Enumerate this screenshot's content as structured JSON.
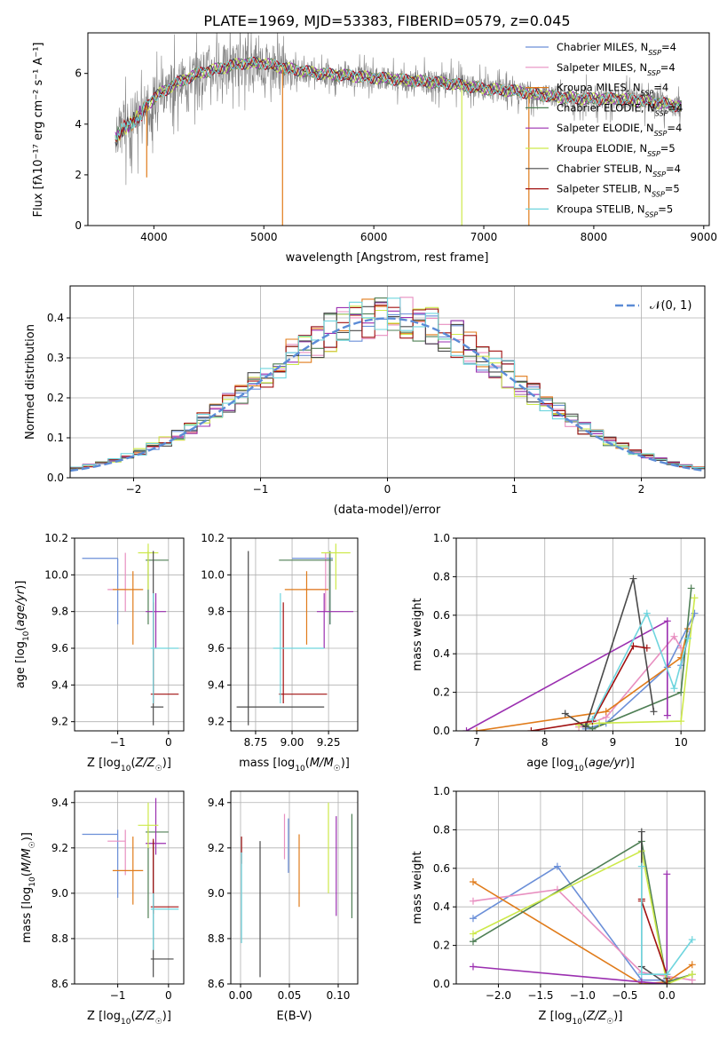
{
  "colors": {
    "Chabrier MILES": "#6b8fd8",
    "Salpeter MILES": "#e88fc0",
    "Kroupa MILES": "#e07b1a",
    "Chabrier ELODIE": "#4f7f55",
    "Salpeter ELODIE": "#9b2fb0",
    "Kroupa ELODIE": "#cde94a",
    "Chabrier STELIB": "#4a4a4a",
    "Salpeter STELIB": "#a01010",
    "Kroupa STELIB": "#6fd5de",
    "data": "#808080",
    "gauss": "#5b8bd6"
  },
  "chart_data": [
    {
      "type": "line",
      "title": "PLATE=1969, MJD=53383, FIBERID=0579, z=0.045",
      "xlabel": "wavelength [Angstrom, rest frame]",
      "ylabel": "Flux [fλ10⁻¹⁷ erg cm⁻² s⁻¹ A⁻¹]",
      "xlim": [
        3400,
        9050
      ],
      "ylim": [
        0,
        7.6
      ],
      "xticks": [
        4000,
        5000,
        6000,
        7000,
        8000,
        9000
      ],
      "yticks": [
        0,
        2,
        4,
        6
      ],
      "legend": [
        {
          "key": "Chabrier MILES",
          "base": "Chabrier MILES, N",
          "sub": "SSP",
          "val": "=4"
        },
        {
          "key": "Salpeter MILES",
          "base": "Salpeter MILES, N",
          "sub": "SSP",
          "val": "=4"
        },
        {
          "key": "Kroupa MILES",
          "base": "Kroupa MILES, N",
          "sub": "SSP",
          "val": "=4"
        },
        {
          "key": "Chabrier ELODIE",
          "base": "Chabrier ELODIE, N",
          "sub": "SSP",
          "val": "=4"
        },
        {
          "key": "Salpeter ELODIE",
          "base": "Salpeter ELODIE, N",
          "sub": "SSP",
          "val": "=4"
        },
        {
          "key": "Kroupa ELODIE",
          "base": "Kroupa ELODIE, N",
          "sub": "SSP",
          "val": "=5"
        },
        {
          "key": "Chabrier STELIB",
          "base": "Chabrier STELIB, N",
          "sub": "SSP",
          "val": "=4"
        },
        {
          "key": "Salpeter STELIB",
          "base": "Salpeter STELIB, N",
          "sub": "SSP",
          "val": "=5"
        },
        {
          "key": "Kroupa STELIB",
          "base": "Kroupa STELIB, N",
          "sub": "SSP",
          "val": "=5"
        }
      ],
      "legend_position": "upper right",
      "continuum_points": [
        [
          3650,
          3.6
        ],
        [
          3750,
          4.1
        ],
        [
          3900,
          4.6
        ],
        [
          4050,
          5.2
        ],
        [
          4200,
          5.6
        ],
        [
          4400,
          6.0
        ],
        [
          4600,
          6.2
        ],
        [
          4800,
          6.4
        ],
        [
          5000,
          6.4
        ],
        [
          5200,
          6.2
        ],
        [
          5500,
          6.0
        ],
        [
          5800,
          5.9
        ],
        [
          6100,
          5.8
        ],
        [
          6400,
          5.7
        ],
        [
          6700,
          5.6
        ],
        [
          7000,
          5.4
        ],
        [
          7300,
          5.3
        ],
        [
          7600,
          5.1
        ],
        [
          7900,
          5.0
        ],
        [
          8200,
          5.0
        ],
        [
          8500,
          4.9
        ],
        [
          8800,
          4.7
        ]
      ],
      "model_dips": [
        {
          "x": 3935,
          "y": 1.9
        },
        {
          "x": 5170,
          "y": 0.0
        },
        {
          "x": 6800,
          "y": 0.0
        },
        {
          "x": 7410,
          "y": 0.0
        }
      ]
    },
    {
      "type": "line",
      "xlabel": "(data-model)/error",
      "ylabel": "Normed distribution",
      "xlim": [
        -2.5,
        2.5
      ],
      "ylim": [
        0,
        0.48
      ],
      "xticks": [
        -2,
        -1,
        0,
        1,
        2
      ],
      "yticks": [
        0.0,
        0.1,
        0.2,
        0.3,
        0.4
      ],
      "legend": [
        {
          "name": "𝒩(0, 1)"
        }
      ],
      "legend_position": "upper right",
      "bin_width": 0.1,
      "histogram_range": [
        -2.5,
        2.5
      ]
    },
    {
      "type": "scatter",
      "xlabel": "Z [log10(Z/Z☉)]",
      "ylabel": "age  [log10(age/yr)]",
      "xlim": [
        -1.85,
        0.3
      ],
      "ylim": [
        9.15,
        10.2
      ],
      "xticks": [
        -1,
        0
      ],
      "yticks": [
        9.2,
        9.4,
        9.6,
        9.8,
        10.0,
        10.2
      ],
      "points": [
        {
          "key": "Chabrier MILES",
          "x": -1.0,
          "y": 10.09,
          "xerr": [
            0.7,
            0.0
          ],
          "yerr": [
            0.36,
            0.0
          ]
        },
        {
          "key": "Salpeter MILES",
          "x": -0.85,
          "y": 9.92,
          "xerr": [
            0.35,
            0.0
          ],
          "yerr": [
            0.12,
            0.2
          ]
        },
        {
          "key": "Kroupa MILES",
          "x": -0.7,
          "y": 9.92,
          "xerr": [
            0.4,
            0.2
          ],
          "yerr": [
            0.3,
            0.1
          ]
        },
        {
          "key": "Chabrier ELODIE",
          "x": -0.4,
          "y": 10.08,
          "xerr": [
            0.05,
            0.4
          ],
          "yerr": [
            0.35,
            0.05
          ]
        },
        {
          "key": "Salpeter ELODIE",
          "x": -0.25,
          "y": 9.8,
          "xerr": [
            0.2,
            0.2
          ],
          "yerr": [
            0.2,
            0.1
          ]
        },
        {
          "key": "Kroupa ELODIE",
          "x": -0.4,
          "y": 10.12,
          "xerr": [
            0.2,
            0.2
          ],
          "yerr": [
            0.2,
            0.05
          ]
        },
        {
          "key": "Chabrier STELIB",
          "x": -0.3,
          "y": 9.28,
          "xerr": [
            0.05,
            0.2
          ],
          "yerr": [
            0.1,
            0.85
          ]
        },
        {
          "key": "Salpeter STELIB",
          "x": -0.3,
          "y": 9.35,
          "xerr": [
            0.05,
            0.5
          ],
          "yerr": [
            0.05,
            0.5
          ]
        },
        {
          "key": "Kroupa STELIB",
          "x": -0.3,
          "y": 9.6,
          "xerr": [
            0.05,
            0.5
          ],
          "yerr": [
            0.3,
            0.3
          ]
        }
      ]
    },
    {
      "type": "scatter",
      "xlabel": "mass [log10(M/M☉)]",
      "ylabel": "",
      "xlim": [
        8.58,
        9.45
      ],
      "ylim": [
        9.15,
        10.2
      ],
      "xticks": [
        8.75,
        9.0,
        9.25
      ],
      "yticks": [
        9.2,
        9.4,
        9.6,
        9.8,
        10.0,
        10.2
      ],
      "points": [
        {
          "key": "Chabrier MILES",
          "x": 9.26,
          "y": 10.09,
          "xerr": [
            0.26,
            0.02
          ],
          "yerr": [
            0.36,
            0.0
          ]
        },
        {
          "key": "Salpeter MILES",
          "x": 9.23,
          "y": 9.92,
          "xerr": [
            0.15,
            0.02
          ],
          "yerr": [
            0.12,
            0.2
          ]
        },
        {
          "key": "Kroupa MILES",
          "x": 9.1,
          "y": 9.92,
          "xerr": [
            0.15,
            0.15
          ],
          "yerr": [
            0.3,
            0.1
          ]
        },
        {
          "key": "Chabrier ELODIE",
          "x": 9.26,
          "y": 10.08,
          "xerr": [
            0.35,
            0.02
          ],
          "yerr": [
            0.35,
            0.05
          ]
        },
        {
          "key": "Salpeter ELODIE",
          "x": 9.22,
          "y": 9.8,
          "xerr": [
            0.05,
            0.2
          ],
          "yerr": [
            0.2,
            0.1
          ]
        },
        {
          "key": "Kroupa ELODIE",
          "x": 9.3,
          "y": 10.12,
          "xerr": [
            0.1,
            0.1
          ],
          "yerr": [
            0.2,
            0.05
          ]
        },
        {
          "key": "Chabrier STELIB",
          "x": 8.7,
          "y": 9.28,
          "xerr": [
            0.08,
            0.52
          ],
          "yerr": [
            0.1,
            0.85
          ]
        },
        {
          "key": "Salpeter STELIB",
          "x": 8.94,
          "y": 9.35,
          "xerr": [
            0.03,
            0.3
          ],
          "yerr": [
            0.05,
            0.5
          ]
        },
        {
          "key": "Kroupa STELIB",
          "x": 8.92,
          "y": 9.6,
          "xerr": [
            0.05,
            0.3
          ],
          "yerr": [
            0.3,
            0.3
          ]
        }
      ]
    },
    {
      "type": "line",
      "xlabel": "age  [log10(age/yr)]",
      "ylabel": "mass weight",
      "xlim": [
        6.7,
        10.35
      ],
      "ylim": [
        0,
        1.0
      ],
      "xticks": [
        7,
        8,
        9,
        10
      ],
      "yticks": [
        0.0,
        0.2,
        0.4,
        0.6,
        0.8,
        1.0
      ],
      "series": [
        {
          "key": "Chabrier MILES",
          "x": [
            8.6,
            8.9,
            9.8,
            10.2,
            10.0
          ],
          "y": [
            0.01,
            0.04,
            0.33,
            0.61,
            0.34
          ]
        },
        {
          "key": "Salpeter MILES",
          "x": [
            8.5,
            8.9,
            9.9,
            10.0
          ],
          "y": [
            0.02,
            0.07,
            0.49,
            0.43
          ]
        },
        {
          "key": "Kroupa MILES",
          "x": [
            7.0,
            8.9,
            10.0,
            10.1
          ],
          "y": [
            0.0,
            0.1,
            0.38,
            0.53
          ]
        },
        {
          "key": "Chabrier ELODIE",
          "x": [
            8.6,
            8.7,
            10.0,
            10.15
          ],
          "y": [
            0.03,
            0.01,
            0.2,
            0.74
          ]
        },
        {
          "key": "Salpeter ELODIE",
          "x": [
            6.85,
            9.8,
            9.8
          ],
          "y": [
            0.0,
            0.57,
            0.08
          ]
        },
        {
          "key": "Kroupa ELODIE",
          "x": [
            8.5,
            8.8,
            10.0,
            10.2
          ],
          "y": [
            0.03,
            0.04,
            0.05,
            0.69
          ]
        },
        {
          "key": "Chabrier STELIB",
          "x": [
            8.3,
            8.6,
            9.3,
            9.6
          ],
          "y": [
            0.09,
            0.02,
            0.79,
            0.1
          ]
        },
        {
          "key": "Salpeter STELIB",
          "x": [
            7.8,
            8.7,
            9.3,
            9.5
          ],
          "y": [
            0.0,
            0.05,
            0.44,
            0.43
          ]
        },
        {
          "key": "Kroupa STELIB",
          "x": [
            8.7,
            9.5,
            9.9,
            10.1
          ],
          "y": [
            0.06,
            0.61,
            0.22,
            0.48
          ]
        }
      ]
    },
    {
      "type": "scatter",
      "xlabel": "Z [log10(Z/Z☉)]",
      "ylabel": "mass [log10(M/M☉)]",
      "xlim": [
        -1.85,
        0.3
      ],
      "ylim": [
        8.6,
        9.45
      ],
      "xticks": [
        -1,
        0
      ],
      "yticks": [
        8.6,
        8.8,
        9.0,
        9.2,
        9.4
      ],
      "points": [
        {
          "key": "Chabrier MILES",
          "x": -1.0,
          "y": 9.26,
          "xerr": [
            0.7,
            0.0
          ],
          "yerr": [
            0.28,
            0.02
          ]
        },
        {
          "key": "Salpeter MILES",
          "x": -0.85,
          "y": 9.23,
          "xerr": [
            0.35,
            0.0
          ],
          "yerr": [
            0.15,
            0.05
          ]
        },
        {
          "key": "Kroupa MILES",
          "x": -0.7,
          "y": 9.1,
          "xerr": [
            0.4,
            0.2
          ],
          "yerr": [
            0.15,
            0.15
          ]
        },
        {
          "key": "Chabrier ELODIE",
          "x": -0.4,
          "y": 9.27,
          "xerr": [
            0.05,
            0.4
          ],
          "yerr": [
            0.38,
            0.02
          ]
        },
        {
          "key": "Salpeter ELODIE",
          "x": -0.25,
          "y": 9.22,
          "xerr": [
            0.2,
            0.2
          ],
          "yerr": [
            0.05,
            0.2
          ]
        },
        {
          "key": "Kroupa ELODIE",
          "x": -0.4,
          "y": 9.3,
          "xerr": [
            0.2,
            0.2
          ],
          "yerr": [
            0.1,
            0.1
          ]
        },
        {
          "key": "Chabrier STELIB",
          "x": -0.3,
          "y": 8.71,
          "xerr": [
            0.05,
            0.4
          ],
          "yerr": [
            0.08,
            0.52
          ]
        },
        {
          "key": "Salpeter STELIB",
          "x": -0.3,
          "y": 8.94,
          "xerr": [
            0.05,
            0.5
          ],
          "yerr": [
            0.03,
            0.3
          ]
        },
        {
          "key": "Kroupa STELIB",
          "x": -0.3,
          "y": 8.93,
          "xerr": [
            0.05,
            0.5
          ],
          "yerr": [
            0.18,
            0.07
          ]
        }
      ]
    },
    {
      "type": "scatter",
      "xlabel": "E(B-V)",
      "ylabel": "",
      "xlim": [
        -0.01,
        0.12
      ],
      "ylim": [
        8.6,
        9.45
      ],
      "xticks": [
        0.0,
        0.05,
        0.1
      ],
      "yticks": [
        8.6,
        8.8,
        9.0,
        9.2,
        9.4
      ],
      "points": [
        {
          "key": "Chabrier MILES",
          "x": 0.049,
          "y": 9.21,
          "yerr": [
            0.12,
            0.12
          ]
        },
        {
          "key": "Salpeter MILES",
          "x": 0.045,
          "y": 9.25,
          "yerr": [
            0.1,
            0.1
          ]
        },
        {
          "key": "Kroupa MILES",
          "x": 0.06,
          "y": 9.1,
          "yerr": [
            0.16,
            0.16
          ]
        },
        {
          "key": "Chabrier ELODIE",
          "x": 0.114,
          "y": 9.12,
          "yerr": [
            0.23,
            0.23
          ]
        },
        {
          "key": "Salpeter ELODIE",
          "x": 0.098,
          "y": 9.12,
          "yerr": [
            0.22,
            0.22
          ]
        },
        {
          "key": "Kroupa ELODIE",
          "x": 0.09,
          "y": 9.2,
          "yerr": [
            0.2,
            0.2
          ]
        },
        {
          "key": "Chabrier STELIB",
          "x": 0.02,
          "y": 8.93,
          "yerr": [
            0.3,
            0.3
          ]
        },
        {
          "key": "Salpeter STELIB",
          "x": 0.001,
          "y": 9.19,
          "yerr": [
            0.06,
            0.06
          ]
        },
        {
          "key": "Kroupa STELIB",
          "x": 0.001,
          "y": 8.98,
          "yerr": [
            0.2,
            0.2
          ]
        }
      ]
    },
    {
      "type": "line",
      "xlabel": "Z [log10(Z/Z☉)]",
      "ylabel": "mass weight",
      "xlim": [
        -2.5,
        0.45
      ],
      "ylim": [
        0,
        1.0
      ],
      "xticks": [
        -2.0,
        -1.5,
        -1.0,
        -0.5,
        0.0
      ],
      "yticks": [
        0.0,
        0.2,
        0.4,
        0.6,
        0.8,
        1.0
      ],
      "series": [
        {
          "key": "Chabrier MILES",
          "x": [
            -2.3,
            -1.3,
            -0.3,
            0.0
          ],
          "y": [
            0.34,
            0.61,
            0.02,
            0.02
          ]
        },
        {
          "key": "Salpeter MILES",
          "x": [
            -2.3,
            -1.3,
            -0.3,
            0.3
          ],
          "y": [
            0.43,
            0.49,
            0.06,
            0.02
          ]
        },
        {
          "key": "Kroupa MILES",
          "x": [
            -2.3,
            -0.3,
            0.0,
            0.3
          ],
          "y": [
            0.53,
            0.0,
            0.01,
            0.1
          ]
        },
        {
          "key": "Chabrier ELODIE",
          "x": [
            -2.3,
            -0.3,
            0.0,
            0.3
          ],
          "y": [
            0.22,
            0.74,
            0.01,
            0.05
          ]
        },
        {
          "key": "Salpeter ELODIE",
          "x": [
            -2.3,
            -0.3,
            0.0,
            0.0
          ],
          "y": [
            0.09,
            0.01,
            0.0,
            0.57
          ]
        },
        {
          "key": "Kroupa ELODIE",
          "x": [
            -2.3,
            -0.3,
            0.0,
            0.3
          ],
          "y": [
            0.26,
            0.69,
            0.0,
            0.05
          ]
        },
        {
          "key": "Chabrier STELIB",
          "x": [
            -0.3,
            -0.3,
            0.0,
            0.0
          ],
          "y": [
            0.79,
            0.09,
            0.0,
            0.03
          ]
        },
        {
          "key": "Salpeter STELIB",
          "x": [
            -0.3,
            -0.3,
            0.0,
            0.0
          ],
          "y": [
            0.44,
            0.43,
            0.05,
            0.0
          ]
        },
        {
          "key": "Kroupa STELIB",
          "x": [
            -0.3,
            -0.3,
            0.0,
            0.3
          ],
          "y": [
            0.61,
            0.05,
            0.05,
            0.23
          ]
        }
      ]
    }
  ]
}
